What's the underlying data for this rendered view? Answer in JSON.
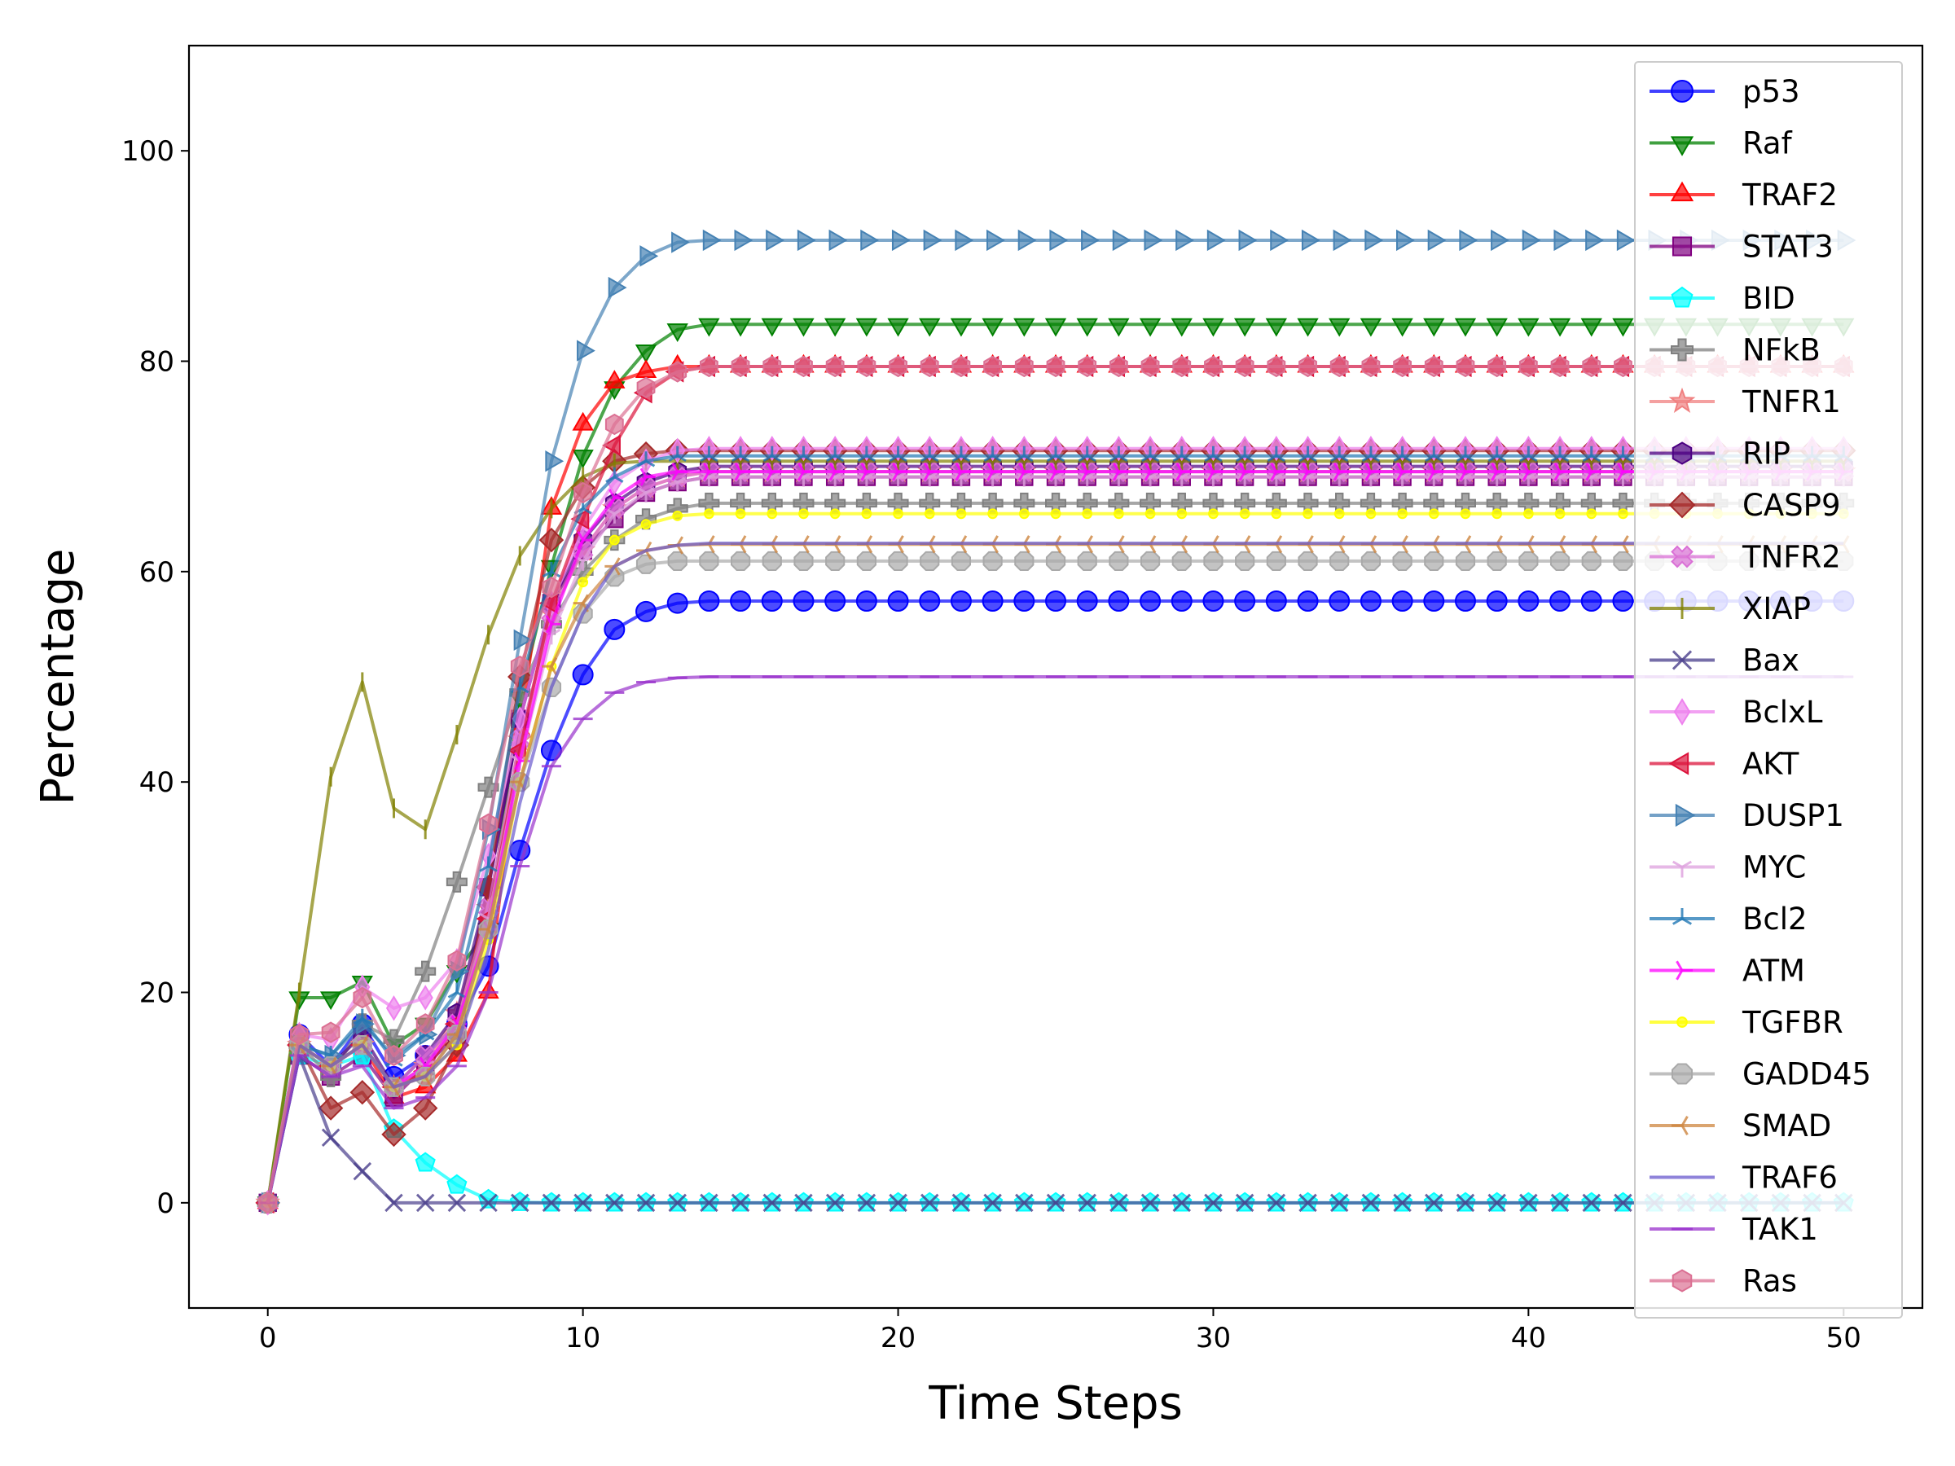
{
  "chart_data": {
    "type": "line",
    "title": "",
    "xlabel": "Time Steps",
    "ylabel": "Percentage",
    "xlim": [
      -2.5,
      52.5
    ],
    "ylim": [
      -10,
      110
    ],
    "xticks": [
      0,
      10,
      20,
      30,
      40,
      50
    ],
    "yticks": [
      0,
      20,
      40,
      60,
      80,
      100
    ],
    "grid": false,
    "legend_position": "top-right",
    "x_count": 51,
    "series": [
      {
        "name": "p53",
        "color": "#0000ff",
        "marker": "circle",
        "head": [
          0,
          16,
          13,
          17,
          12,
          14,
          17,
          22.5,
          33.5,
          43,
          50.2,
          54.5,
          56.2,
          57,
          57.2
        ],
        "plateau": 57.2
      },
      {
        "name": "Raf",
        "color": "#008000",
        "marker": "triangle-down",
        "head": [
          0,
          19.5,
          19.5,
          21,
          15,
          17,
          22,
          26,
          48,
          60.5,
          71,
          77.5,
          81,
          83,
          83.5
        ],
        "plateau": 83.5
      },
      {
        "name": "TRAF2",
        "color": "#ff0000",
        "marker": "triangle-up",
        "head": [
          0,
          15,
          13,
          15,
          10,
          11,
          14,
          20,
          45,
          66,
          74,
          78,
          79,
          79.5,
          79.5
        ],
        "plateau": 79.5
      },
      {
        "name": "STAT3",
        "color": "#800080",
        "marker": "square",
        "head": [
          0,
          14,
          12,
          14,
          10,
          13,
          16,
          30,
          46,
          57,
          62,
          65,
          67.5,
          68.5,
          69
        ],
        "plateau": 69
      },
      {
        "name": "BID",
        "color": "#00ffff",
        "marker": "pentagon",
        "head": [
          0,
          14,
          13,
          14,
          7,
          3.8,
          1.7,
          0.3,
          0.05
        ],
        "plateau": 0
      },
      {
        "name": "NFkB",
        "color": "#808080",
        "marker": "plus",
        "head": [
          0,
          15,
          12,
          17,
          15.5,
          22,
          30.5,
          39.5,
          48.5,
          55,
          60,
          63,
          65,
          66,
          66.5
        ],
        "plateau": 66.5
      },
      {
        "name": "TNFR1",
        "color": "#f08080",
        "marker": "star",
        "head": [
          0,
          15,
          13,
          15,
          11,
          13,
          18,
          28,
          44,
          56,
          62,
          66,
          68,
          69,
          69.5
        ],
        "plateau": 69.5
      },
      {
        "name": "RIP",
        "color": "#4b0082",
        "marker": "hexagon",
        "head": [
          0,
          15,
          13,
          16,
          11,
          14,
          18,
          30,
          46,
          57,
          63,
          66.5,
          68.5,
          69.5,
          70
        ],
        "plateau": 70
      },
      {
        "name": "CASP9",
        "color": "#a52a2a",
        "marker": "diamond",
        "head": [
          0,
          15,
          9,
          10.5,
          6.5,
          9,
          15,
          30,
          50,
          63,
          68,
          70.5,
          71.2,
          71.5,
          71.5
        ],
        "plateau": 71.5
      },
      {
        "name": "TNFR2",
        "color": "#da70d6",
        "marker": "x-filled",
        "head": [
          0,
          15,
          13,
          15,
          11,
          14,
          17,
          28,
          44,
          56,
          62,
          66,
          68,
          69,
          69.5
        ],
        "plateau": 69.5
      },
      {
        "name": "XIAP",
        "color": "#808000",
        "marker": "vline",
        "head": [
          0,
          20,
          40.5,
          49.5,
          37.5,
          35.5,
          44.5,
          54,
          61.5,
          66,
          69,
          70.3,
          70.5,
          70.5
        ],
        "plateau": 70.5
      },
      {
        "name": "Bax",
        "color": "#483d8b",
        "marker": "x",
        "head": [
          0,
          14,
          6.2,
          3,
          0
        ],
        "plateau": 0
      },
      {
        "name": "BclxL",
        "color": "#ee82ee",
        "marker": "thin-diamond",
        "head": [
          0,
          16,
          15.5,
          20.5,
          18.5,
          19.5,
          23,
          33,
          46,
          57,
          64,
          68.5,
          70.5,
          71.5,
          71.7
        ],
        "plateau": 71.7
      },
      {
        "name": "AKT",
        "color": "#dc143c",
        "marker": "triangle-left",
        "head": [
          0,
          15,
          13,
          15,
          11,
          12.5,
          17,
          27,
          43,
          57,
          65,
          72,
          77,
          79,
          79.5
        ],
        "plateau": 79.5
      },
      {
        "name": "DUSP1",
        "color": "#4682b4",
        "marker": "triangle-right",
        "head": [
          0,
          15,
          14,
          17,
          14,
          16,
          22,
          35.5,
          53.5,
          70.5,
          81,
          87,
          90,
          91.3,
          91.5
        ],
        "plateau": 91.5
      },
      {
        "name": "MYC",
        "color": "#dda0dd",
        "marker": "tri-down",
        "head": [
          0,
          15,
          13,
          15,
          11,
          13,
          17,
          27,
          42,
          54,
          61,
          65.5,
          67.5,
          68.5,
          69
        ],
        "plateau": 69
      },
      {
        "name": "Bcl2",
        "color": "#1f77b4",
        "marker": "tri-up",
        "head": [
          0,
          15,
          14,
          17.5,
          13.5,
          16,
          20,
          32,
          49,
          60,
          66,
          69,
          70.5,
          71,
          71
        ],
        "plateau": 71
      },
      {
        "name": "ATM",
        "color": "#ff00ff",
        "marker": "tri-right",
        "head": [
          0,
          15,
          13,
          15,
          11,
          13,
          17,
          26,
          42,
          55,
          63,
          67,
          69,
          69.5,
          69.5
        ],
        "plateau": 69.5
      },
      {
        "name": "TGFBR",
        "color": "#ffff00",
        "marker": "point",
        "head": [
          0,
          15,
          13,
          15,
          11,
          12,
          15,
          25,
          40,
          51,
          59,
          63,
          64.5,
          65.3,
          65.5
        ],
        "plateau": 65.5
      },
      {
        "name": "GADD45",
        "color": "#a9a9a9",
        "marker": "octagon",
        "head": [
          0,
          15,
          13,
          15,
          11,
          12,
          16,
          26,
          40,
          49,
          56,
          59.5,
          60.7,
          61,
          61
        ],
        "plateau": 61
      },
      {
        "name": "SMAD",
        "color": "#cd853f",
        "marker": "tri-left",
        "head": [
          0,
          15,
          13,
          15,
          11,
          12,
          16,
          26,
          40,
          51,
          57,
          60.5,
          62,
          62.5,
          62.6
        ],
        "plateau": 62.6
      },
      {
        "name": "TRAF6",
        "color": "#6a5acd",
        "marker": "none",
        "head": [
          0,
          15,
          13,
          15,
          11,
          12,
          15,
          24,
          38,
          49,
          56,
          60.5,
          62,
          62.5,
          62.7
        ],
        "plateau": 62.7
      },
      {
        "name": "TAK1",
        "color": "#9932cc",
        "marker": "hline",
        "head": [
          0,
          14,
          12,
          13,
          9,
          10,
          13,
          20,
          32,
          41.5,
          46,
          48.5,
          49.5,
          49.9,
          50
        ],
        "plateau": 50
      },
      {
        "name": "Ras",
        "color": "#db7093",
        "marker": "hexagon",
        "head": [
          0,
          16,
          16.2,
          19.5,
          14,
          17,
          23,
          36,
          51,
          58.5,
          67.5,
          74,
          77.5,
          79,
          79.5
        ],
        "plateau": 79.5
      }
    ]
  }
}
